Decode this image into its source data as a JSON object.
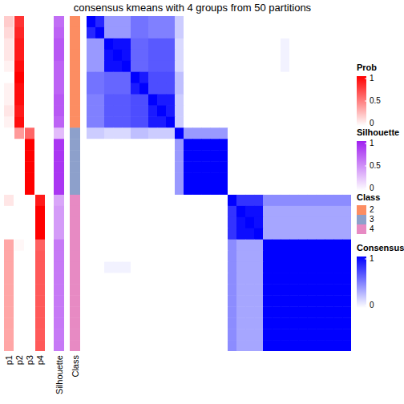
{
  "chart_data": {
    "type": "heatmap",
    "title": "consensus kmeans with 4 groups from 50 partitions",
    "annotation_labels": [
      "p1",
      "p2",
      "p3",
      "p4",
      "Silhouette",
      "Class"
    ],
    "prob": [
      [
        0.2,
        0.8,
        0,
        0
      ],
      [
        0.15,
        0.85,
        0,
        0
      ],
      [
        0.1,
        0.9,
        0,
        0
      ],
      [
        0.1,
        0.9,
        0,
        0
      ],
      [
        0.05,
        0.95,
        0,
        0
      ],
      [
        0,
        1,
        0,
        0
      ],
      [
        0.05,
        0.95,
        0,
        0
      ],
      [
        0.05,
        0.95,
        0,
        0
      ],
      [
        0.1,
        0.9,
        0,
        0
      ],
      [
        0.05,
        0.95,
        0,
        0
      ],
      [
        0,
        0.4,
        0.6,
        0
      ],
      [
        0,
        0,
        1,
        0
      ],
      [
        0,
        0,
        1,
        0
      ],
      [
        0,
        0,
        1,
        0
      ],
      [
        0,
        0,
        1,
        0
      ],
      [
        0,
        0,
        1,
        0
      ],
      [
        0.1,
        0,
        0,
        0.9
      ],
      [
        0,
        0,
        0,
        1
      ],
      [
        0,
        0,
        0,
        1
      ],
      [
        0,
        0,
        0,
        1
      ],
      [
        0.35,
        0.03,
        0,
        0.62
      ],
      [
        0.35,
        0,
        0,
        0.65
      ],
      [
        0.35,
        0,
        0,
        0.65
      ],
      [
        0.35,
        0,
        0,
        0.65
      ],
      [
        0.35,
        0,
        0,
        0.65
      ],
      [
        0.35,
        0,
        0,
        0.65
      ],
      [
        0.35,
        0,
        0,
        0.65
      ],
      [
        0.35,
        0,
        0,
        0.65
      ],
      [
        0.35,
        0,
        0,
        0.65
      ],
      [
        0.35,
        0,
        0,
        0.65
      ]
    ],
    "silhouette": [
      0.65,
      0.7,
      0.75,
      0.75,
      0.7,
      0.7,
      0.7,
      0.75,
      0.75,
      0.7,
      0.3,
      0.9,
      0.9,
      0.9,
      0.9,
      0.9,
      0.4,
      0.45,
      0.45,
      0.45,
      0.6,
      0.6,
      0.6,
      0.6,
      0.6,
      0.6,
      0.6,
      0.6,
      0.6,
      0.6
    ],
    "class": [
      2,
      2,
      2,
      2,
      2,
      2,
      2,
      2,
      2,
      2,
      3,
      3,
      3,
      3,
      3,
      3,
      4,
      4,
      4,
      4,
      4,
      4,
      4,
      4,
      4,
      4,
      4,
      4,
      4,
      4
    ],
    "consensus": [
      [
        1,
        0.85,
        0.4,
        0.4,
        0.4,
        0.55,
        0.55,
        0.5,
        0.5,
        0.5,
        0.2,
        0,
        0,
        0,
        0,
        0,
        0,
        0,
        0,
        0,
        0,
        0,
        0,
        0,
        0,
        0,
        0,
        0,
        0,
        0
      ],
      [
        0.85,
        1,
        0.4,
        0.4,
        0.4,
        0.55,
        0.55,
        0.5,
        0.5,
        0.5,
        0.2,
        0,
        0,
        0,
        0,
        0,
        0,
        0,
        0,
        0,
        0,
        0,
        0,
        0,
        0,
        0,
        0,
        0,
        0,
        0
      ],
      [
        0.4,
        0.4,
        1,
        0.95,
        0.95,
        0.6,
        0.6,
        0.65,
        0.65,
        0.65,
        0.15,
        0,
        0,
        0,
        0,
        0,
        0,
        0,
        0,
        0,
        0,
        0,
        0.05,
        0,
        0,
        0,
        0,
        0,
        0,
        0
      ],
      [
        0.4,
        0.4,
        0.95,
        1,
        0.95,
        0.6,
        0.6,
        0.65,
        0.65,
        0.65,
        0.15,
        0,
        0,
        0,
        0,
        0,
        0,
        0,
        0,
        0,
        0,
        0,
        0.05,
        0,
        0,
        0,
        0,
        0,
        0,
        0
      ],
      [
        0.4,
        0.4,
        0.95,
        0.95,
        1,
        0.6,
        0.6,
        0.65,
        0.65,
        0.65,
        0.15,
        0,
        0,
        0,
        0,
        0,
        0,
        0,
        0,
        0,
        0,
        0,
        0.05,
        0,
        0,
        0,
        0,
        0,
        0,
        0
      ],
      [
        0.55,
        0.55,
        0.6,
        0.6,
        0.6,
        1,
        0.9,
        0.7,
        0.7,
        0.7,
        0.25,
        0,
        0,
        0,
        0,
        0,
        0,
        0,
        0,
        0,
        0,
        0,
        0,
        0,
        0,
        0,
        0,
        0,
        0,
        0
      ],
      [
        0.55,
        0.55,
        0.6,
        0.6,
        0.6,
        0.9,
        1,
        0.7,
        0.7,
        0.7,
        0.25,
        0,
        0,
        0,
        0,
        0,
        0,
        0,
        0,
        0,
        0,
        0,
        0,
        0,
        0,
        0,
        0,
        0,
        0,
        0
      ],
      [
        0.5,
        0.5,
        0.65,
        0.65,
        0.65,
        0.7,
        0.7,
        1,
        0.9,
        0.9,
        0.2,
        0,
        0,
        0,
        0,
        0,
        0,
        0,
        0,
        0,
        0,
        0,
        0,
        0,
        0,
        0,
        0,
        0,
        0,
        0
      ],
      [
        0.5,
        0.5,
        0.65,
        0.65,
        0.65,
        0.7,
        0.7,
        0.9,
        1,
        0.9,
        0.2,
        0,
        0,
        0,
        0,
        0,
        0,
        0,
        0,
        0,
        0,
        0,
        0,
        0,
        0,
        0,
        0,
        0,
        0,
        0
      ],
      [
        0.5,
        0.5,
        0.65,
        0.65,
        0.65,
        0.7,
        0.7,
        0.9,
        0.9,
        1,
        0.2,
        0,
        0,
        0,
        0,
        0,
        0,
        0,
        0,
        0,
        0,
        0,
        0,
        0,
        0,
        0,
        0,
        0,
        0,
        0
      ],
      [
        0.2,
        0.2,
        0.15,
        0.15,
        0.15,
        0.25,
        0.25,
        0.2,
        0.2,
        0.2,
        1,
        0.4,
        0.4,
        0.4,
        0.4,
        0.4,
        0,
        0,
        0,
        0,
        0,
        0,
        0,
        0,
        0,
        0,
        0,
        0,
        0,
        0
      ],
      [
        0,
        0,
        0,
        0,
        0,
        0,
        0,
        0,
        0,
        0,
        0.4,
        1,
        1,
        1,
        1,
        1,
        0,
        0,
        0,
        0,
        0,
        0,
        0,
        0,
        0,
        0,
        0,
        0,
        0,
        0
      ],
      [
        0,
        0,
        0,
        0,
        0,
        0,
        0,
        0,
        0,
        0,
        0.4,
        1,
        1,
        1,
        1,
        1,
        0,
        0,
        0,
        0,
        0,
        0,
        0,
        0,
        0,
        0,
        0,
        0,
        0,
        0
      ],
      [
        0,
        0,
        0,
        0,
        0,
        0,
        0,
        0,
        0,
        0,
        0.4,
        1,
        1,
        1,
        1,
        1,
        0,
        0,
        0,
        0,
        0,
        0,
        0,
        0,
        0,
        0,
        0,
        0,
        0,
        0
      ],
      [
        0,
        0,
        0,
        0,
        0,
        0,
        0,
        0,
        0,
        0,
        0.4,
        1,
        1,
        1,
        1,
        1,
        0,
        0,
        0,
        0,
        0,
        0,
        0,
        0,
        0,
        0,
        0,
        0,
        0,
        0
      ],
      [
        0,
        0,
        0,
        0,
        0,
        0,
        0,
        0,
        0,
        0,
        0.4,
        1,
        1,
        1,
        1,
        1,
        0,
        0,
        0,
        0,
        0,
        0,
        0,
        0,
        0,
        0,
        0,
        0,
        0,
        0
      ],
      [
        0,
        0,
        0,
        0,
        0,
        0,
        0,
        0,
        0,
        0,
        0,
        0,
        0,
        0,
        0,
        0,
        1,
        0.8,
        0.8,
        0.8,
        0.45,
        0.45,
        0.45,
        0.45,
        0.45,
        0.45,
        0.45,
        0.45,
        0.45,
        0.45
      ],
      [
        0,
        0,
        0,
        0,
        0,
        0,
        0,
        0,
        0,
        0,
        0,
        0,
        0,
        0,
        0,
        0,
        0.8,
        1,
        0.95,
        0.95,
        0.35,
        0.35,
        0.35,
        0.35,
        0.35,
        0.35,
        0.35,
        0.35,
        0.35,
        0.35
      ],
      [
        0,
        0,
        0,
        0,
        0,
        0,
        0,
        0,
        0,
        0,
        0,
        0,
        0,
        0,
        0,
        0,
        0.8,
        0.95,
        1,
        0.95,
        0.35,
        0.35,
        0.35,
        0.35,
        0.35,
        0.35,
        0.35,
        0.35,
        0.35,
        0.35
      ],
      [
        0,
        0,
        0,
        0,
        0,
        0,
        0,
        0,
        0,
        0,
        0,
        0,
        0,
        0,
        0,
        0,
        0.8,
        0.95,
        0.95,
        1,
        0.35,
        0.35,
        0.35,
        0.35,
        0.35,
        0.35,
        0.35,
        0.35,
        0.35,
        0.35
      ],
      [
        0,
        0,
        0,
        0,
        0,
        0,
        0,
        0,
        0,
        0,
        0,
        0,
        0,
        0,
        0,
        0,
        0.45,
        0.35,
        0.35,
        0.35,
        1,
        1,
        1,
        1,
        1,
        1,
        1,
        1,
        1,
        1
      ],
      [
        0,
        0,
        0,
        0,
        0,
        0,
        0,
        0,
        0,
        0,
        0,
        0,
        0,
        0,
        0,
        0,
        0.45,
        0.35,
        0.35,
        0.35,
        1,
        1,
        1,
        1,
        1,
        1,
        1,
        1,
        1,
        1
      ],
      [
        0,
        0,
        0.05,
        0.05,
        0.05,
        0,
        0,
        0,
        0,
        0,
        0,
        0,
        0,
        0,
        0,
        0,
        0.45,
        0.35,
        0.35,
        0.35,
        1,
        1,
        1,
        1,
        1,
        1,
        1,
        1,
        1,
        1
      ],
      [
        0,
        0,
        0,
        0,
        0,
        0,
        0,
        0,
        0,
        0,
        0,
        0,
        0,
        0,
        0,
        0,
        0.45,
        0.35,
        0.35,
        0.35,
        1,
        1,
        1,
        1,
        1,
        1,
        1,
        1,
        1,
        1
      ],
      [
        0,
        0,
        0,
        0,
        0,
        0,
        0,
        0,
        0,
        0,
        0,
        0,
        0,
        0,
        0,
        0,
        0.45,
        0.35,
        0.35,
        0.35,
        1,
        1,
        1,
        1,
        1,
        1,
        1,
        1,
        1,
        1
      ],
      [
        0,
        0,
        0,
        0,
        0,
        0,
        0,
        0,
        0,
        0,
        0,
        0,
        0,
        0,
        0,
        0,
        0.45,
        0.35,
        0.35,
        0.35,
        1,
        1,
        1,
        1,
        1,
        1,
        1,
        1,
        1,
        1
      ],
      [
        0,
        0,
        0,
        0,
        0,
        0,
        0,
        0,
        0,
        0,
        0,
        0,
        0,
        0,
        0,
        0,
        0.45,
        0.35,
        0.35,
        0.35,
        1,
        1,
        1,
        1,
        1,
        1,
        1,
        1,
        1,
        1
      ],
      [
        0,
        0,
        0,
        0,
        0,
        0,
        0,
        0,
        0,
        0,
        0,
        0,
        0,
        0,
        0,
        0,
        0.45,
        0.35,
        0.35,
        0.35,
        1,
        1,
        1,
        1,
        1,
        1,
        1,
        1,
        1,
        1
      ],
      [
        0,
        0,
        0,
        0,
        0,
        0,
        0,
        0,
        0,
        0,
        0,
        0,
        0,
        0,
        0,
        0,
        0.45,
        0.35,
        0.35,
        0.35,
        1,
        1,
        1,
        1,
        1,
        1,
        1,
        1,
        1,
        1
      ],
      [
        0,
        0,
        0,
        0,
        0,
        0,
        0,
        0,
        0,
        0,
        0,
        0,
        0,
        0,
        0,
        0,
        0.45,
        0.35,
        0.35,
        0.35,
        1,
        1,
        1,
        1,
        1,
        1,
        1,
        1,
        1,
        1
      ]
    ],
    "prob_colorbar": {
      "title": "Prob",
      "range": [
        0,
        1
      ],
      "ticks": [
        0,
        0.5,
        1
      ],
      "color": "#ff0000"
    },
    "silhouette_colorbar": {
      "title": "Silhouette",
      "range": [
        0,
        1
      ],
      "ticks": [
        0,
        0.5,
        1
      ],
      "color": "#a020f0"
    },
    "class_legend": {
      "title": "Class",
      "levels": [
        2,
        3,
        4
      ],
      "colors": [
        "#fc8d62",
        "#8da0cb",
        "#e78ac3"
      ]
    },
    "consensus_colorbar": {
      "title": "Consensus",
      "range": [
        0,
        1
      ],
      "ticks": [
        0,
        1
      ],
      "color": "#0000ff"
    }
  }
}
